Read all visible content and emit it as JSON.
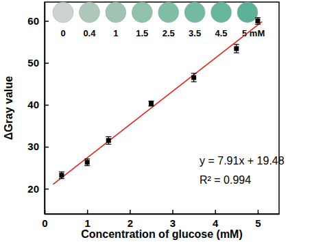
{
  "chart_data": {
    "type": "scatter",
    "x_label": "Concentration of glucose (mM)",
    "y_label": "ΔGray value",
    "x": [
      0.4,
      1,
      1.5,
      2.5,
      3.5,
      4.5,
      5
    ],
    "values": [
      23.2,
      26.3,
      31.5,
      40.3,
      46.5,
      53.4,
      60.0
    ],
    "errors": [
      0.8,
      0.8,
      0.9,
      0.6,
      1.0,
      1.0,
      0.8
    ],
    "color": "#000000",
    "marker": "square",
    "xlim": [
      0,
      5.5
    ],
    "ylim": [
      14,
      64.5
    ],
    "xticks": [
      0,
      1,
      2,
      3,
      4,
      5
    ],
    "yticks": [
      20,
      30,
      40,
      50,
      60
    ],
    "grid": false,
    "fit": {
      "slope": 7.91,
      "intercept": 19.48,
      "x": [
        0.2,
        5.1
      ],
      "color": "#e8211b"
    },
    "annotations": [
      "y = 7.91x + 19.48",
      "R² = 0.994"
    ],
    "inset_labels": [
      "0",
      "0.4",
      "1",
      "1.5",
      "2.5",
      "3.5",
      "4.5",
      "5 mM"
    ]
  }
}
